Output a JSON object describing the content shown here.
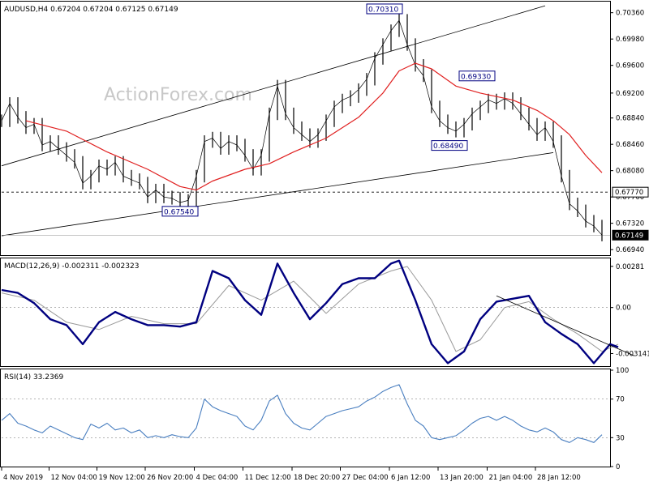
{
  "chart_data": [
    {
      "type": "line",
      "panel": "price",
      "title": "AUDUSD,H4  0.67204 0.67204 0.67125 0.67149",
      "watermark": "ActionForex.com",
      "ylim": [
        0.6686,
        0.7052
      ],
      "y_ticks": [
        "0.70360",
        "0.69980",
        "0.69600",
        "0.69200",
        "0.68840",
        "0.68460",
        "0.68080",
        "0.67700",
        "0.67320",
        "0.66940"
      ],
      "ma_color": "#e02020",
      "price_color": "#000000",
      "annotations": [
        {
          "label": "0.70310",
          "value": 0.7031
        },
        {
          "label": "0.69330",
          "value": 0.6933
        },
        {
          "label": "0.68490",
          "value": 0.6849
        },
        {
          "label": "0.67540",
          "value": 0.6754
        }
      ],
      "horizontal_levels": [
        {
          "label": "0.67770",
          "value": 0.6777,
          "style": "dashed"
        },
        {
          "label": "0.67149",
          "value": 0.67149,
          "style": "current"
        }
      ],
      "trendlines": [
        {
          "points": [
            [
              0.0,
              0.6815
            ],
            [
              0.67,
              0.7046
            ]
          ]
        },
        {
          "points": [
            [
              0.0,
              0.6714
            ],
            [
              0.68,
              0.6834
            ]
          ]
        }
      ],
      "close_series": [
        [
          0.0,
          0.688
        ],
        [
          0.01,
          0.6905
        ],
        [
          0.02,
          0.6885
        ],
        [
          0.03,
          0.687
        ],
        [
          0.04,
          0.6875
        ],
        [
          0.05,
          0.6845
        ],
        [
          0.06,
          0.685
        ],
        [
          0.07,
          0.684
        ],
        [
          0.08,
          0.683
        ],
        [
          0.09,
          0.682
        ],
        [
          0.1,
          0.679
        ],
        [
          0.11,
          0.68
        ],
        [
          0.12,
          0.6815
        ],
        [
          0.13,
          0.681
        ],
        [
          0.14,
          0.682
        ],
        [
          0.15,
          0.68
        ],
        [
          0.16,
          0.6795
        ],
        [
          0.17,
          0.679
        ],
        [
          0.18,
          0.677
        ],
        [
          0.19,
          0.678
        ],
        [
          0.2,
          0.677
        ],
        [
          0.21,
          0.6768
        ],
        [
          0.22,
          0.6762
        ],
        [
          0.23,
          0.6765
        ],
        [
          0.24,
          0.68
        ],
        [
          0.25,
          0.685
        ],
        [
          0.26,
          0.6855
        ],
        [
          0.27,
          0.684
        ],
        [
          0.28,
          0.685
        ],
        [
          0.29,
          0.6845
        ],
        [
          0.3,
          0.683
        ],
        [
          0.31,
          0.681
        ],
        [
          0.32,
          0.683
        ],
        [
          0.33,
          0.689
        ],
        [
          0.34,
          0.693
        ],
        [
          0.35,
          0.689
        ],
        [
          0.36,
          0.687
        ],
        [
          0.37,
          0.686
        ],
        [
          0.38,
          0.685
        ],
        [
          0.39,
          0.686
        ],
        [
          0.4,
          0.688
        ],
        [
          0.41,
          0.69
        ],
        [
          0.42,
          0.691
        ],
        [
          0.43,
          0.6915
        ],
        [
          0.44,
          0.6925
        ],
        [
          0.45,
          0.694
        ],
        [
          0.46,
          0.697
        ],
        [
          0.47,
          0.699
        ],
        [
          0.48,
          0.701
        ],
        [
          0.49,
          0.7025
        ],
        [
          0.5,
          0.699
        ],
        [
          0.51,
          0.696
        ],
        [
          0.52,
          0.6945
        ],
        [
          0.53,
          0.69
        ],
        [
          0.54,
          0.688
        ],
        [
          0.55,
          0.687
        ],
        [
          0.56,
          0.6865
        ],
        [
          0.57,
          0.6875
        ],
        [
          0.58,
          0.689
        ],
        [
          0.59,
          0.69
        ],
        [
          0.6,
          0.691
        ],
        [
          0.61,
          0.6905
        ],
        [
          0.62,
          0.6912
        ],
        [
          0.63,
          0.6905
        ],
        [
          0.64,
          0.689
        ],
        [
          0.65,
          0.6875
        ],
        [
          0.66,
          0.686
        ],
        [
          0.67,
          0.687
        ],
        [
          0.68,
          0.685
        ],
        [
          0.69,
          0.68
        ],
        [
          0.7,
          0.676
        ],
        [
          0.71,
          0.675
        ],
        [
          0.72,
          0.6735
        ],
        [
          0.73,
          0.6728
        ],
        [
          0.74,
          0.6715
        ]
      ],
      "ma_series": [
        [
          0.03,
          0.688
        ],
        [
          0.08,
          0.6865
        ],
        [
          0.13,
          0.6835
        ],
        [
          0.18,
          0.681
        ],
        [
          0.22,
          0.6785
        ],
        [
          0.24,
          0.678
        ],
        [
          0.26,
          0.6793
        ],
        [
          0.3,
          0.681
        ],
        [
          0.33,
          0.6818
        ],
        [
          0.36,
          0.6835
        ],
        [
          0.4,
          0.6855
        ],
        [
          0.44,
          0.6885
        ],
        [
          0.47,
          0.692
        ],
        [
          0.49,
          0.6952
        ],
        [
          0.51,
          0.6963
        ],
        [
          0.53,
          0.6955
        ],
        [
          0.56,
          0.693
        ],
        [
          0.59,
          0.692
        ],
        [
          0.63,
          0.691
        ],
        [
          0.66,
          0.6895
        ],
        [
          0.68,
          0.688
        ],
        [
          0.7,
          0.686
        ],
        [
          0.72,
          0.683
        ],
        [
          0.74,
          0.6805
        ]
      ]
    },
    {
      "type": "line",
      "panel": "macd",
      "title": "MACD(12,26,9) -0.002311 -0.002323",
      "ylim": [
        -0.004,
        0.0033
      ],
      "y_ticks": [
        "0.00281",
        "0.00",
        "-0.003141"
      ],
      "series": [
        {
          "color": "#000080",
          "values": [
            [
              0.0,
              0.0012
            ],
            [
              0.02,
              0.001
            ],
            [
              0.04,
              0.0003
            ],
            [
              0.06,
              -0.0008
            ],
            [
              0.08,
              -0.0012
            ],
            [
              0.1,
              -0.0025
            ],
            [
              0.12,
              -0.001
            ],
            [
              0.14,
              -0.0003
            ],
            [
              0.16,
              -0.0008
            ],
            [
              0.18,
              -0.0012
            ],
            [
              0.2,
              -0.0012
            ],
            [
              0.22,
              -0.0013
            ],
            [
              0.24,
              -0.001
            ],
            [
              0.26,
              0.0025
            ],
            [
              0.28,
              0.002
            ],
            [
              0.3,
              0.0005
            ],
            [
              0.32,
              -0.0005
            ],
            [
              0.34,
              0.003
            ],
            [
              0.36,
              0.001
            ],
            [
              0.38,
              -0.0008
            ],
            [
              0.4,
              0.0003
            ],
            [
              0.42,
              0.0016
            ],
            [
              0.44,
              0.002
            ],
            [
              0.46,
              0.002
            ],
            [
              0.48,
              0.003
            ],
            [
              0.49,
              0.0032
            ],
            [
              0.51,
              0.0005
            ],
            [
              0.53,
              -0.0025
            ],
            [
              0.55,
              -0.0038
            ],
            [
              0.57,
              -0.003
            ],
            [
              0.59,
              -0.0008
            ],
            [
              0.61,
              0.0004
            ],
            [
              0.63,
              0.0006
            ],
            [
              0.65,
              0.0008
            ],
            [
              0.67,
              -0.001
            ],
            [
              0.69,
              -0.0018
            ],
            [
              0.71,
              -0.0025
            ],
            [
              0.73,
              -0.0038
            ],
            [
              0.75,
              -0.0025
            ],
            [
              0.76,
              -0.0027
            ]
          ]
        },
        {
          "color": "#999999",
          "values": [
            [
              0.0,
              0.001
            ],
            [
              0.04,
              0.0005
            ],
            [
              0.08,
              -0.001
            ],
            [
              0.12,
              -0.0015
            ],
            [
              0.16,
              -0.0006
            ],
            [
              0.2,
              -0.0011
            ],
            [
              0.24,
              -0.0011
            ],
            [
              0.28,
              0.0015
            ],
            [
              0.32,
              0.0005
            ],
            [
              0.36,
              0.0018
            ],
            [
              0.4,
              -0.0004
            ],
            [
              0.44,
              0.0016
            ],
            [
              0.48,
              0.0025
            ],
            [
              0.5,
              0.0028
            ],
            [
              0.53,
              0.0005
            ],
            [
              0.56,
              -0.003
            ],
            [
              0.59,
              -0.0022
            ],
            [
              0.62,
              0.0
            ],
            [
              0.65,
              0.0004
            ],
            [
              0.68,
              -0.0008
            ],
            [
              0.71,
              -0.0018
            ],
            [
              0.74,
              -0.003
            ],
            [
              0.76,
              -0.0025
            ]
          ]
        }
      ],
      "trendlines": [
        {
          "points": [
            [
              0.61,
              0.0008
            ],
            [
              0.78,
              -0.0033
            ]
          ]
        }
      ]
    },
    {
      "type": "line",
      "panel": "rsi",
      "title": "RSI(14) 33.2369",
      "ylim": [
        0,
        100
      ],
      "y_ticks": [
        "100",
        "70",
        "30",
        "0"
      ],
      "levels": [
        70,
        30
      ],
      "series": [
        {
          "color": "#4a7fc0",
          "values": [
            [
              0.0,
              48
            ],
            [
              0.01,
              55
            ],
            [
              0.02,
              45
            ],
            [
              0.03,
              42
            ],
            [
              0.04,
              38
            ],
            [
              0.05,
              35
            ],
            [
              0.06,
              42
            ],
            [
              0.07,
              38
            ],
            [
              0.08,
              34
            ],
            [
              0.09,
              30
            ],
            [
              0.1,
              28
            ],
            [
              0.11,
              44
            ],
            [
              0.12,
              40
            ],
            [
              0.13,
              45
            ],
            [
              0.14,
              38
            ],
            [
              0.15,
              40
            ],
            [
              0.16,
              35
            ],
            [
              0.17,
              38
            ],
            [
              0.18,
              30
            ],
            [
              0.19,
              32
            ],
            [
              0.2,
              30
            ],
            [
              0.21,
              33
            ],
            [
              0.22,
              31
            ],
            [
              0.23,
              30
            ],
            [
              0.24,
              40
            ],
            [
              0.25,
              70
            ],
            [
              0.26,
              62
            ],
            [
              0.27,
              58
            ],
            [
              0.28,
              55
            ],
            [
              0.29,
              52
            ],
            [
              0.3,
              42
            ],
            [
              0.31,
              38
            ],
            [
              0.32,
              48
            ],
            [
              0.33,
              68
            ],
            [
              0.34,
              74
            ],
            [
              0.35,
              55
            ],
            [
              0.36,
              45
            ],
            [
              0.37,
              40
            ],
            [
              0.38,
              38
            ],
            [
              0.39,
              45
            ],
            [
              0.4,
              52
            ],
            [
              0.41,
              55
            ],
            [
              0.42,
              58
            ],
            [
              0.43,
              60
            ],
            [
              0.44,
              62
            ],
            [
              0.45,
              68
            ],
            [
              0.46,
              72
            ],
            [
              0.47,
              78
            ],
            [
              0.48,
              82
            ],
            [
              0.49,
              85
            ],
            [
              0.5,
              65
            ],
            [
              0.51,
              48
            ],
            [
              0.52,
              42
            ],
            [
              0.53,
              30
            ],
            [
              0.54,
              28
            ],
            [
              0.55,
              30
            ],
            [
              0.56,
              32
            ],
            [
              0.57,
              38
            ],
            [
              0.58,
              45
            ],
            [
              0.59,
              50
            ],
            [
              0.6,
              52
            ],
            [
              0.61,
              48
            ],
            [
              0.62,
              52
            ],
            [
              0.63,
              48
            ],
            [
              0.64,
              42
            ],
            [
              0.65,
              38
            ],
            [
              0.66,
              36
            ],
            [
              0.67,
              40
            ],
            [
              0.68,
              36
            ],
            [
              0.69,
              28
            ],
            [
              0.7,
              25
            ],
            [
              0.71,
              30
            ],
            [
              0.72,
              28
            ],
            [
              0.73,
              25
            ],
            [
              0.74,
              33
            ]
          ]
        }
      ]
    }
  ],
  "x_labels": [
    "4 Nov 2019",
    "12 Nov 04:00",
    "19 Nov 12:00",
    "26 Nov 20:00",
    "4 Dec 04:00",
    "11 Dec 12:00",
    "18 Dec 20:00",
    "27 Dec 04:00",
    "6 Jan 12:00",
    "13 Jan 20:00",
    "21 Jan 04:00",
    "28 Jan 12:00"
  ]
}
